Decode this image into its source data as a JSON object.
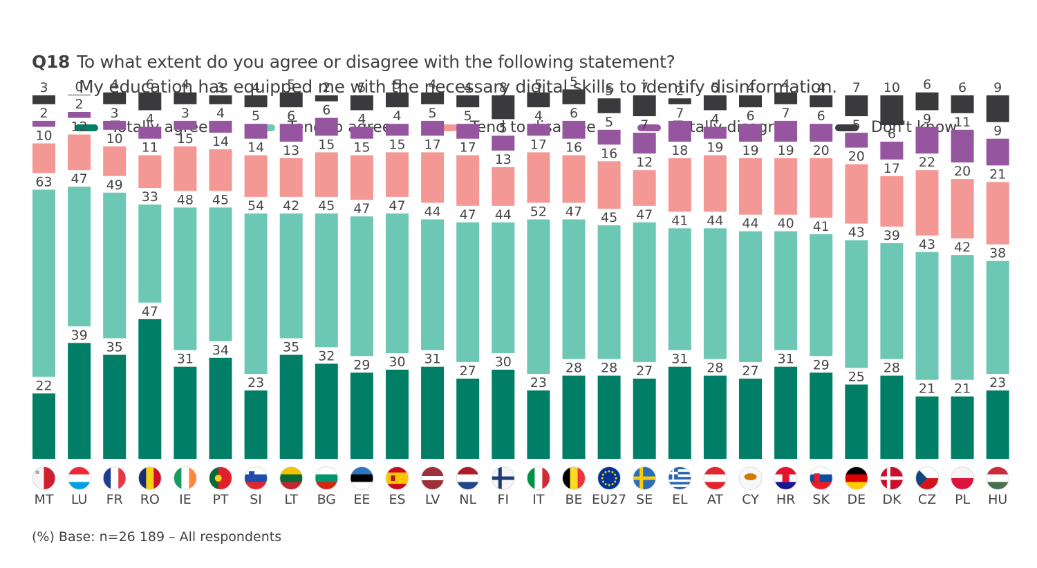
{
  "title": {
    "code": "Q18",
    "line1": "To what extent do you agree or disagree with the following statement?",
    "line2": "My education has equipped me with the necessary digital skills to identify disinformation."
  },
  "footnote": "(%) Base: n=26 189 – All respondents",
  "chart_data": {
    "type": "bar",
    "stacked": true,
    "title": "Q18 To what extent do you agree or disagree with the following statement? My education has equipped me with the necessary digital skills to identify disinformation.",
    "xlabel": "",
    "ylabel": "%",
    "grid": false,
    "legend_position": "top",
    "categories": [
      "MT",
      "LU",
      "FR",
      "RO",
      "IE",
      "PT",
      "SI",
      "LT",
      "BG",
      "EE",
      "ES",
      "LV",
      "NL",
      "FI",
      "IT",
      "BE",
      "EU27",
      "SE",
      "EL",
      "AT",
      "CY",
      "HR",
      "SK",
      "DE",
      "DK",
      "CZ",
      "PL",
      "HU"
    ],
    "flags": [
      "malta-flag",
      "luxembourg-flag",
      "france-flag",
      "romania-flag",
      "ireland-flag",
      "portugal-flag",
      "slovenia-flag",
      "lithuania-flag",
      "bulgaria-flag",
      "estonia-flag",
      "spain-flag",
      "latvia-flag",
      "netherlands-flag",
      "finland-flag",
      "italy-flag",
      "belgium-flag",
      "eu-flag",
      "sweden-flag",
      "greece-flag",
      "austria-flag",
      "cyprus-flag",
      "croatia-flag",
      "slovakia-flag",
      "germany-flag",
      "denmark-flag",
      "czechia-flag",
      "poland-flag",
      "hungary-flag"
    ],
    "series": [
      {
        "name": "Totally agree",
        "color": "#007f66",
        "values": [
          22,
          39,
          35,
          47,
          31,
          34,
          23,
          35,
          32,
          29,
          30,
          31,
          27,
          30,
          23,
          28,
          28,
          27,
          31,
          28,
          27,
          31,
          29,
          25,
          28,
          21,
          21,
          23
        ]
      },
      {
        "name": "Tend to agree",
        "color": "#6cc7b5",
        "values": [
          63,
          47,
          49,
          33,
          48,
          45,
          54,
          42,
          45,
          47,
          47,
          44,
          47,
          44,
          52,
          47,
          45,
          47,
          41,
          44,
          44,
          40,
          41,
          43,
          39,
          43,
          42,
          38
        ]
      },
      {
        "name": "Tend to disagree",
        "color": "#f49896",
        "values": [
          10,
          12,
          10,
          11,
          15,
          14,
          14,
          13,
          15,
          15,
          15,
          17,
          17,
          13,
          17,
          16,
          16,
          12,
          18,
          19,
          19,
          19,
          20,
          20,
          17,
          22,
          20,
          21
        ]
      },
      {
        "name": "Totally disagree",
        "color": "#95569f",
        "values": [
          2,
          2,
          3,
          4,
          3,
          4,
          5,
          6,
          6,
          4,
          4,
          5,
          5,
          5,
          4,
          6,
          5,
          7,
          7,
          4,
          6,
          7,
          6,
          5,
          6,
          9,
          11,
          9
        ]
      },
      {
        "name": "Don't know",
        "color": "#3a3a3c",
        "values": [
          3,
          0,
          4,
          6,
          4,
          3,
          4,
          5,
          2,
          5,
          5,
          4,
          4,
          8,
          5,
          5,
          5,
          7,
          2,
          5,
          4,
          4,
          4,
          7,
          10,
          6,
          6,
          9
        ]
      }
    ]
  }
}
